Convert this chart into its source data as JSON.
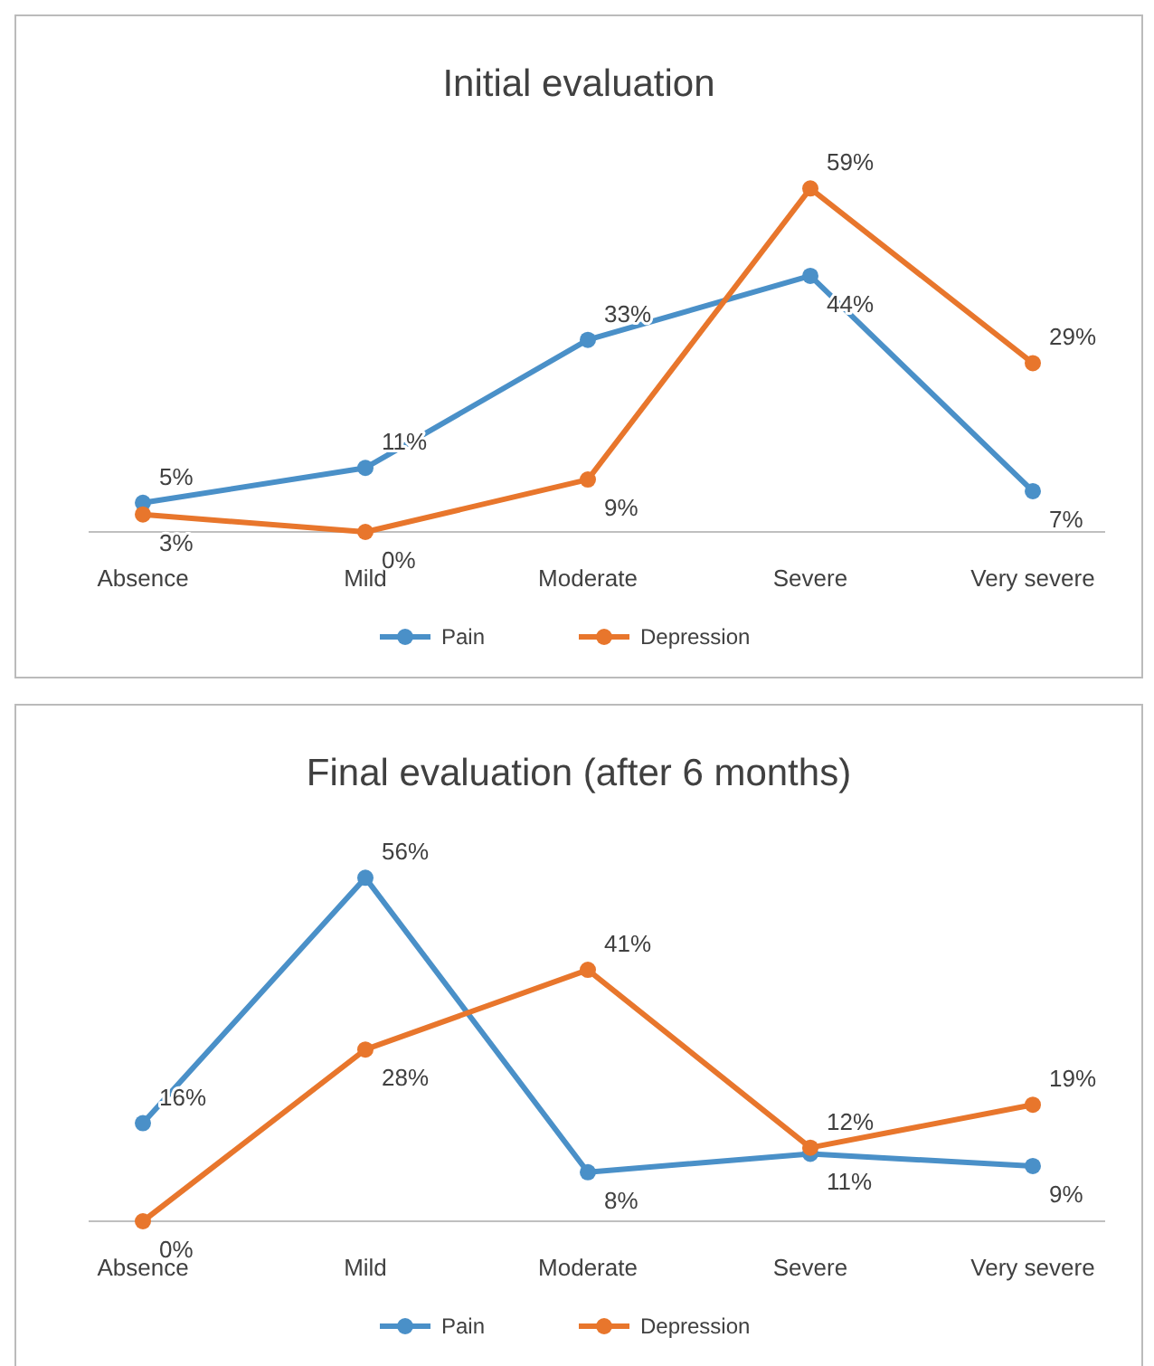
{
  "chart_data": [
    {
      "type": "line",
      "title": "Initial evaluation",
      "categories": [
        "Absence",
        "Mild",
        "Moderate",
        "Severe",
        "Very severe"
      ],
      "legend": "bottom",
      "marker": "circle",
      "grid": false,
      "series": [
        {
          "name": "Pain",
          "color": "#4a90c8",
          "values": [
            5,
            11,
            33,
            44,
            7
          ],
          "value_labels": [
            "5%",
            "11%",
            "33%",
            "44%",
            "7%"
          ]
        },
        {
          "name": "Depression",
          "color": "#e8762c",
          "values": [
            3,
            0,
            9,
            59,
            29
          ],
          "value_labels": [
            "3%",
            "0%",
            "9%",
            "59%",
            "29%"
          ]
        }
      ]
    },
    {
      "type": "line",
      "title": "Final evaluation (after 6 months)",
      "categories": [
        "Absence",
        "Mild",
        "Moderate",
        "Severe",
        "Very severe"
      ],
      "legend": "bottom",
      "marker": "circle",
      "grid": false,
      "series": [
        {
          "name": "Pain",
          "color": "#4a90c8",
          "values": [
            16,
            56,
            8,
            11,
            9
          ],
          "value_labels": [
            "16%",
            "56%",
            "8%",
            "11%",
            "9%"
          ]
        },
        {
          "name": "Depression",
          "color": "#e8762c",
          "values": [
            0,
            28,
            41,
            12,
            19
          ],
          "value_labels": [
            "0%",
            "28%",
            "41%",
            "12%",
            "19%"
          ]
        }
      ]
    }
  ]
}
